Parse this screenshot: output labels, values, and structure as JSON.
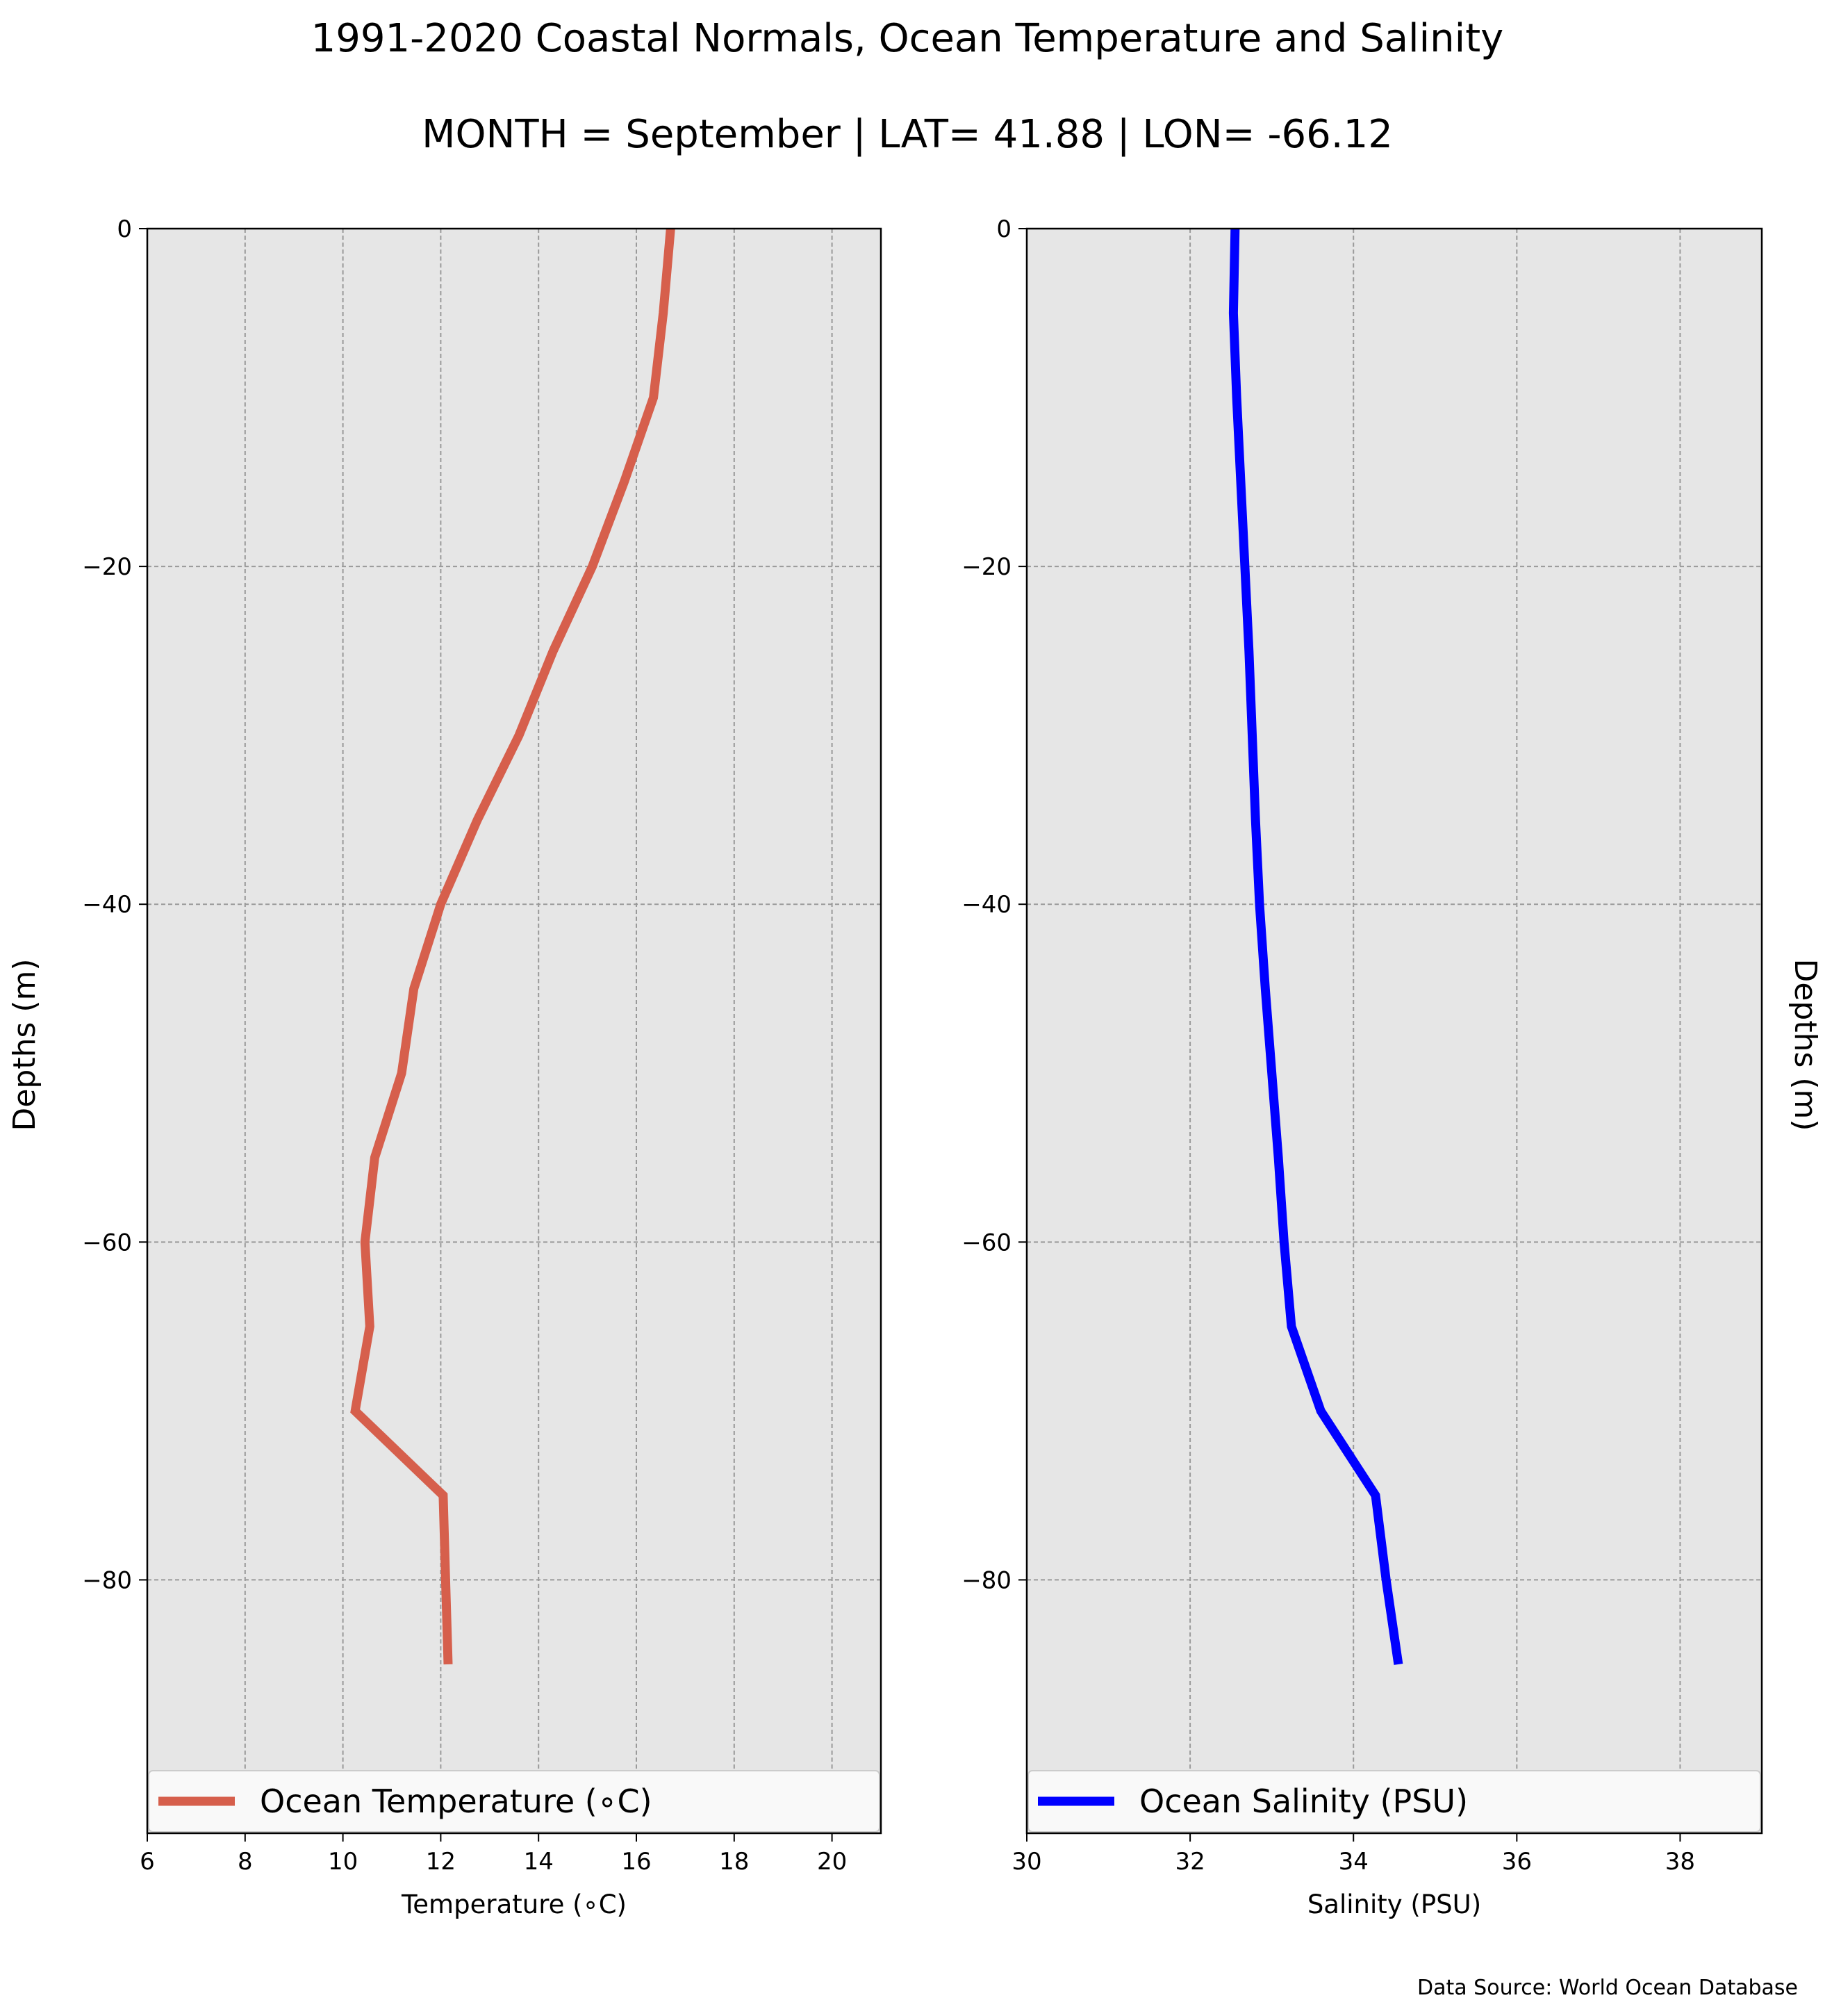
{
  "figure": {
    "title_line1": "1991-2020 Coastal Normals, Ocean Temperature and Salinity",
    "title_line2": "MONTH = September | LAT= 41.88 | LON= -66.12",
    "source": "Data Source: World Ocean Database",
    "background_color": "#ffffff",
    "panel_background_color": "#e6e6e6",
    "grid_color": "#9a9a9a"
  },
  "chart_data": [
    {
      "type": "line",
      "orientation": "vertical-profile",
      "xlabel": "Temperature ($^\\circ$C)",
      "xlabel_display": "Temperature (∘C)",
      "ylabel": "Depths (m)",
      "ylabel_side": "left",
      "xlim": [
        6,
        21
      ],
      "ylim": [
        -95,
        0
      ],
      "xticks": [
        6,
        8,
        10,
        12,
        14,
        16,
        18,
        20
      ],
      "yticks": [
        0,
        -20,
        -40,
        -60,
        -80
      ],
      "ytick_labels": [
        "0",
        "−20",
        "−40",
        "−60",
        "−80"
      ],
      "grid": true,
      "legend_placement": "bottom",
      "series": [
        {
          "name": "Ocean Temperature (∘C)",
          "color": "#d65f4c",
          "depth": [
            0,
            -5,
            -10,
            -15,
            -20,
            -25,
            -30,
            -35,
            -40,
            -45,
            -50,
            -55,
            -60,
            -65,
            -70,
            -75,
            -80,
            -85
          ],
          "values": [
            16.7,
            16.55,
            16.35,
            15.75,
            15.1,
            14.3,
            13.6,
            12.75,
            12.0,
            11.45,
            11.2,
            10.65,
            10.45,
            10.55,
            10.25,
            12.05,
            12.1,
            12.15
          ]
        }
      ]
    },
    {
      "type": "line",
      "orientation": "vertical-profile",
      "xlabel": "Salinity (PSU)",
      "xlabel_display": "Salinity (PSU)",
      "ylabel": "Depths (m)",
      "ylabel_side": "right",
      "xlim": [
        30,
        39
      ],
      "ylim": [
        -95,
        0
      ],
      "xticks": [
        30,
        32,
        34,
        36,
        38
      ],
      "yticks": [
        0,
        -20,
        -40,
        -60,
        -80
      ],
      "ytick_labels": [
        "0",
        "−20",
        "−40",
        "−60",
        "−80"
      ],
      "grid": true,
      "legend_placement": "bottom",
      "series": [
        {
          "name": "Ocean Salinity (PSU)",
          "color": "#0000ff",
          "depth": [
            0,
            -5,
            -10,
            -15,
            -20,
            -25,
            -30,
            -35,
            -40,
            -45,
            -50,
            -55,
            -60,
            -65,
            -70,
            -75,
            -80,
            -85
          ],
          "values": [
            32.55,
            32.53,
            32.57,
            32.62,
            32.67,
            32.72,
            32.76,
            32.8,
            32.85,
            32.92,
            33.0,
            33.08,
            33.15,
            33.24,
            33.6,
            34.27,
            34.4,
            34.55
          ]
        }
      ]
    }
  ]
}
